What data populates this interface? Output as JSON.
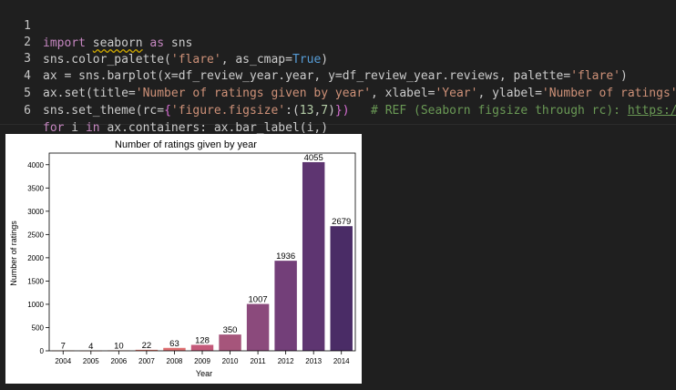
{
  "editor": {
    "line_numbers": [
      "1",
      "2",
      "3",
      "4",
      "5",
      "6"
    ],
    "lines": [
      {
        "t1": "import",
        "t2": "seaborn",
        "t3": "as",
        "t4": "sns"
      },
      {
        "t1": "sns.color_palette(",
        "t2": "'flare'",
        "t3": ", as_cmap=",
        "t4": "True",
        "t5": ")"
      },
      {
        "t1": "ax = sns.barplot(x=df_review_year.year, y=df_review_year.reviews, palette=",
        "t2": "'flare'",
        "t3": ")"
      },
      {
        "t1": "ax.set(title=",
        "t2": "'Number of ratings given by year'",
        "t3": ", xlabel=",
        "t4": "'Year'",
        "t5": ", ylabel=",
        "t6": "'Number of ratings'",
        "t7": ")"
      },
      {
        "t1": "sns.set_theme(rc=",
        "t2": "{",
        "t3": "'figure.figsize'",
        "t4": ":(",
        "t5": "13",
        "t6": ",",
        "t7": "7",
        "t8": ")",
        "t9": "})",
        "t10": "   # REF (Seaborn figsize through rc): ",
        "t11": "https://s"
      },
      {
        "t1": "for",
        "t2": " i ",
        "t3": "in",
        "t4": " ax.containers: ax.bar_label(i,)"
      }
    ]
  },
  "chart_data": {
    "type": "bar",
    "title": "Number of ratings given by year",
    "xlabel": "Year",
    "ylabel": "Number of ratings",
    "categories": [
      "2004",
      "2005",
      "2006",
      "2007",
      "2008",
      "2009",
      "2010",
      "2011",
      "2012",
      "2013",
      "2014"
    ],
    "values": [
      7,
      4,
      10,
      22,
      63,
      128,
      350,
      1007,
      1936,
      4055,
      2679
    ],
    "bar_labels": [
      "7",
      "4",
      "10",
      "22",
      "63",
      "128",
      "350",
      "1007",
      "1936",
      "4055",
      "2679"
    ],
    "colors": [
      "#e98d6b",
      "#e98d6b",
      "#e8836d",
      "#e47a6e",
      "#df6f72",
      "#c4597a",
      "#a6557b",
      "#8b4a7c",
      "#733f79",
      "#5e3571",
      "#4a2c66"
    ],
    "yticks": [
      "0",
      "500",
      "1000",
      "1500",
      "2000",
      "2500",
      "3000",
      "3500",
      "4000"
    ],
    "ylim": [
      0,
      4250
    ],
    "grid": false,
    "legend": false
  }
}
